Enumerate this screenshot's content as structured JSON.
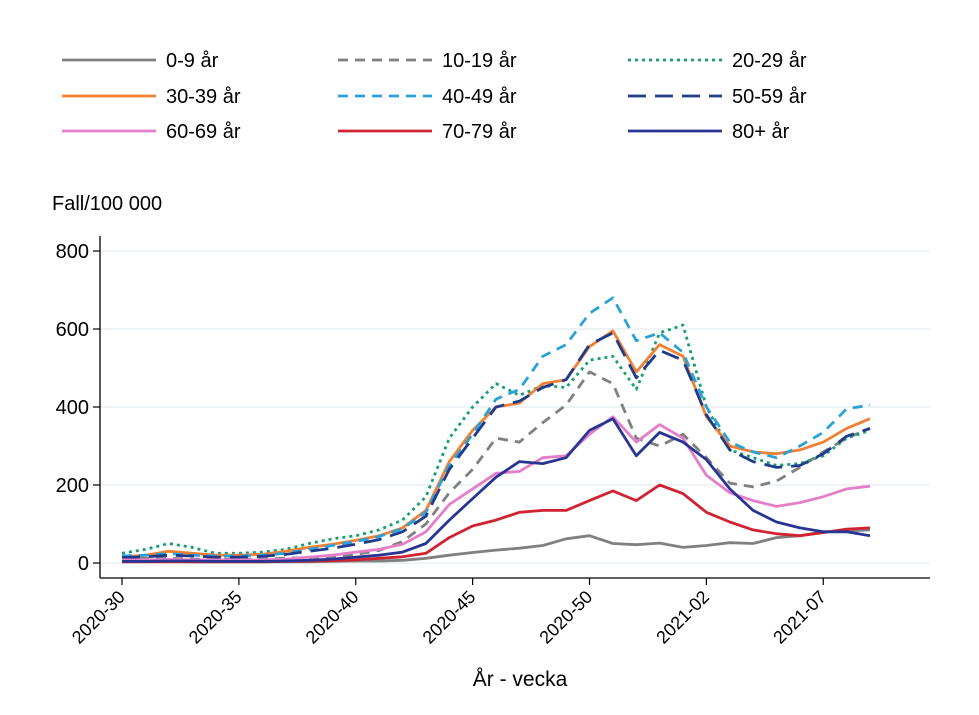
{
  "chart_data": {
    "type": "line",
    "ylabel": "Fall/100 000",
    "xlabel": "År - vecka",
    "ylim": [
      0,
      800
    ],
    "yticks": [
      0,
      200,
      400,
      600,
      800
    ],
    "grid": true,
    "legend_position": "top",
    "x_weeks": [
      "2020-30",
      "2020-31",
      "2020-32",
      "2020-33",
      "2020-34",
      "2020-35",
      "2020-36",
      "2020-37",
      "2020-38",
      "2020-39",
      "2020-40",
      "2020-41",
      "2020-42",
      "2020-43",
      "2020-44",
      "2020-45",
      "2020-46",
      "2020-47",
      "2020-48",
      "2020-49",
      "2020-50",
      "2020-51",
      "2020-52",
      "2020-53",
      "2021-01",
      "2021-02",
      "2021-03",
      "2021-04",
      "2021-05",
      "2021-06",
      "2021-07",
      "2021-08",
      "2021-09"
    ],
    "xticks": [
      {
        "label": "2020-30",
        "week": "2020-30"
      },
      {
        "label": "2020-35",
        "week": "2020-35"
      },
      {
        "label": "2020-40",
        "week": "2020-40"
      },
      {
        "label": "2020-45",
        "week": "2020-45"
      },
      {
        "label": "2020-50",
        "week": "2020-50"
      },
      {
        "label": "2021-02",
        "week": "2021-02"
      },
      {
        "label": "2021-07",
        "week": "2021-07"
      }
    ],
    "series": [
      {
        "name": "0-9 år",
        "color": "#808080",
        "dash": "solid",
        "values": [
          3,
          4,
          4,
          3,
          3,
          3,
          3,
          3,
          3,
          4,
          5,
          5,
          7,
          12,
          20,
          27,
          33,
          38,
          45,
          62,
          70,
          50,
          47,
          51,
          40,
          45,
          52,
          50,
          65,
          70,
          80,
          82,
          85
        ]
      },
      {
        "name": "10-19 år",
        "color": "#808080",
        "dash": "dash",
        "values": [
          10,
          12,
          12,
          10,
          10,
          10,
          10,
          12,
          14,
          16,
          22,
          32,
          55,
          100,
          180,
          240,
          320,
          310,
          360,
          405,
          490,
          460,
          320,
          300,
          330,
          270,
          205,
          195,
          210,
          245,
          285,
          320,
          345
        ]
      },
      {
        "name": "20-29 år",
        "color": "#1a9e76",
        "dash": "dot",
        "values": [
          25,
          35,
          50,
          40,
          25,
          25,
          28,
          35,
          50,
          62,
          70,
          85,
          110,
          170,
          320,
          400,
          460,
          430,
          455,
          450,
          520,
          530,
          445,
          590,
          610,
          400,
          290,
          270,
          250,
          255,
          275,
          320,
          340
        ]
      },
      {
        "name": "30-39 år",
        "color": "#f28033",
        "dash": "solid",
        "values": [
          15,
          20,
          30,
          25,
          20,
          20,
          22,
          30,
          40,
          48,
          58,
          70,
          90,
          135,
          260,
          340,
          400,
          410,
          460,
          470,
          555,
          595,
          490,
          560,
          530,
          375,
          300,
          285,
          280,
          290,
          310,
          345,
          370
        ]
      },
      {
        "name": "40-49 år",
        "color": "#2aa2d9",
        "dash": "dash",
        "values": [
          18,
          20,
          24,
          20,
          18,
          18,
          20,
          25,
          35,
          45,
          55,
          68,
          88,
          130,
          250,
          330,
          420,
          445,
          530,
          560,
          640,
          680,
          570,
          590,
          540,
          400,
          310,
          285,
          270,
          300,
          335,
          395,
          405
        ]
      },
      {
        "name": "50-59 år",
        "color": "#1f3b8c",
        "dash": "longdash",
        "values": [
          14,
          16,
          20,
          18,
          15,
          15,
          17,
          22,
          30,
          38,
          48,
          60,
          80,
          120,
          240,
          320,
          400,
          415,
          450,
          470,
          560,
          590,
          475,
          545,
          520,
          380,
          290,
          260,
          245,
          250,
          280,
          325,
          345
        ]
      },
      {
        "name": "60-69 år",
        "color": "#e57ec9",
        "dash": "solid",
        "values": [
          8,
          8,
          9,
          8,
          8,
          8,
          8,
          10,
          15,
          20,
          28,
          35,
          48,
          80,
          150,
          190,
          230,
          235,
          270,
          275,
          330,
          375,
          310,
          355,
          320,
          225,
          180,
          160,
          145,
          155,
          170,
          190,
          197
        ]
      },
      {
        "name": "70-79 år",
        "color": "#d02332",
        "dash": "solid",
        "values": [
          3,
          3,
          3,
          3,
          3,
          3,
          3,
          4,
          5,
          6,
          8,
          12,
          16,
          25,
          65,
          95,
          110,
          130,
          135,
          135,
          160,
          185,
          160,
          200,
          178,
          130,
          105,
          85,
          75,
          70,
          78,
          87,
          90
        ]
      },
      {
        "name": "80+ år",
        "color": "#283593",
        "dash": "solid",
        "values": [
          4,
          4,
          5,
          5,
          4,
          4,
          4,
          5,
          7,
          10,
          15,
          20,
          28,
          50,
          110,
          165,
          220,
          260,
          255,
          270,
          340,
          370,
          275,
          335,
          310,
          265,
          190,
          135,
          105,
          90,
          80,
          80,
          70
        ]
      }
    ]
  }
}
